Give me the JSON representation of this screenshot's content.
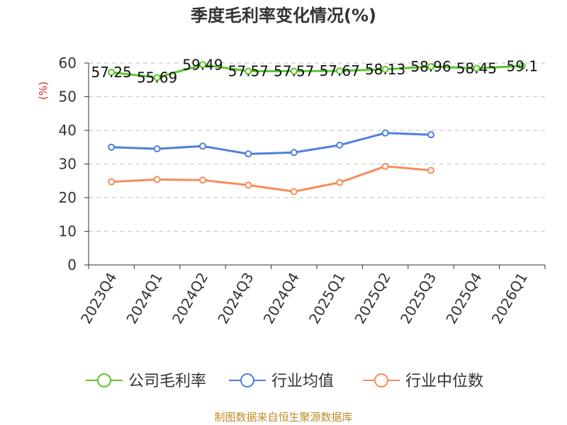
{
  "chart_data": {
    "type": "line",
    "title": "季度毛利率变化情况(%)",
    "unit_label": "(%)",
    "categories": [
      "2023Q4",
      "2024Q1",
      "2024Q2",
      "2024Q3",
      "2024Q4",
      "2025Q1",
      "2025Q2",
      "2025Q3",
      "2025Q4",
      "2026Q1"
    ],
    "ylim": [
      0,
      60
    ],
    "yticks": [
      0,
      10,
      20,
      30,
      40,
      50,
      60
    ],
    "grid": true,
    "legend_position": "bottom",
    "series": [
      {
        "name": "公司毛利率",
        "color": "#5cc72c",
        "values": [
          57.25,
          55.69,
          59.49,
          57.57,
          57.57,
          57.67,
          58.13,
          58.96,
          58.45,
          59.1
        ],
        "labels": [
          "57.25",
          "55.69",
          "59.49",
          "57.57",
          "57.57",
          "57.67",
          "58.13",
          "58.96",
          "58.45",
          "59.1"
        ]
      },
      {
        "name": "行业均值",
        "color": "#4e7fdb",
        "values": [
          35,
          34.5,
          35.3,
          33,
          33.4,
          35.6,
          39.2,
          38.7,
          null,
          null
        ]
      },
      {
        "name": "行业中位数",
        "color": "#f98c5a",
        "values": [
          24.7,
          25.4,
          25.2,
          23.7,
          21.8,
          24.5,
          29.3,
          28.1,
          null,
          null
        ]
      }
    ]
  },
  "footer": {
    "source": "制图数据来自恒生聚源数据库"
  },
  "colors": {
    "unit": "#d42a2a",
    "source": "#c08a2a",
    "grid": "#cccccc",
    "axis": "#333333"
  }
}
